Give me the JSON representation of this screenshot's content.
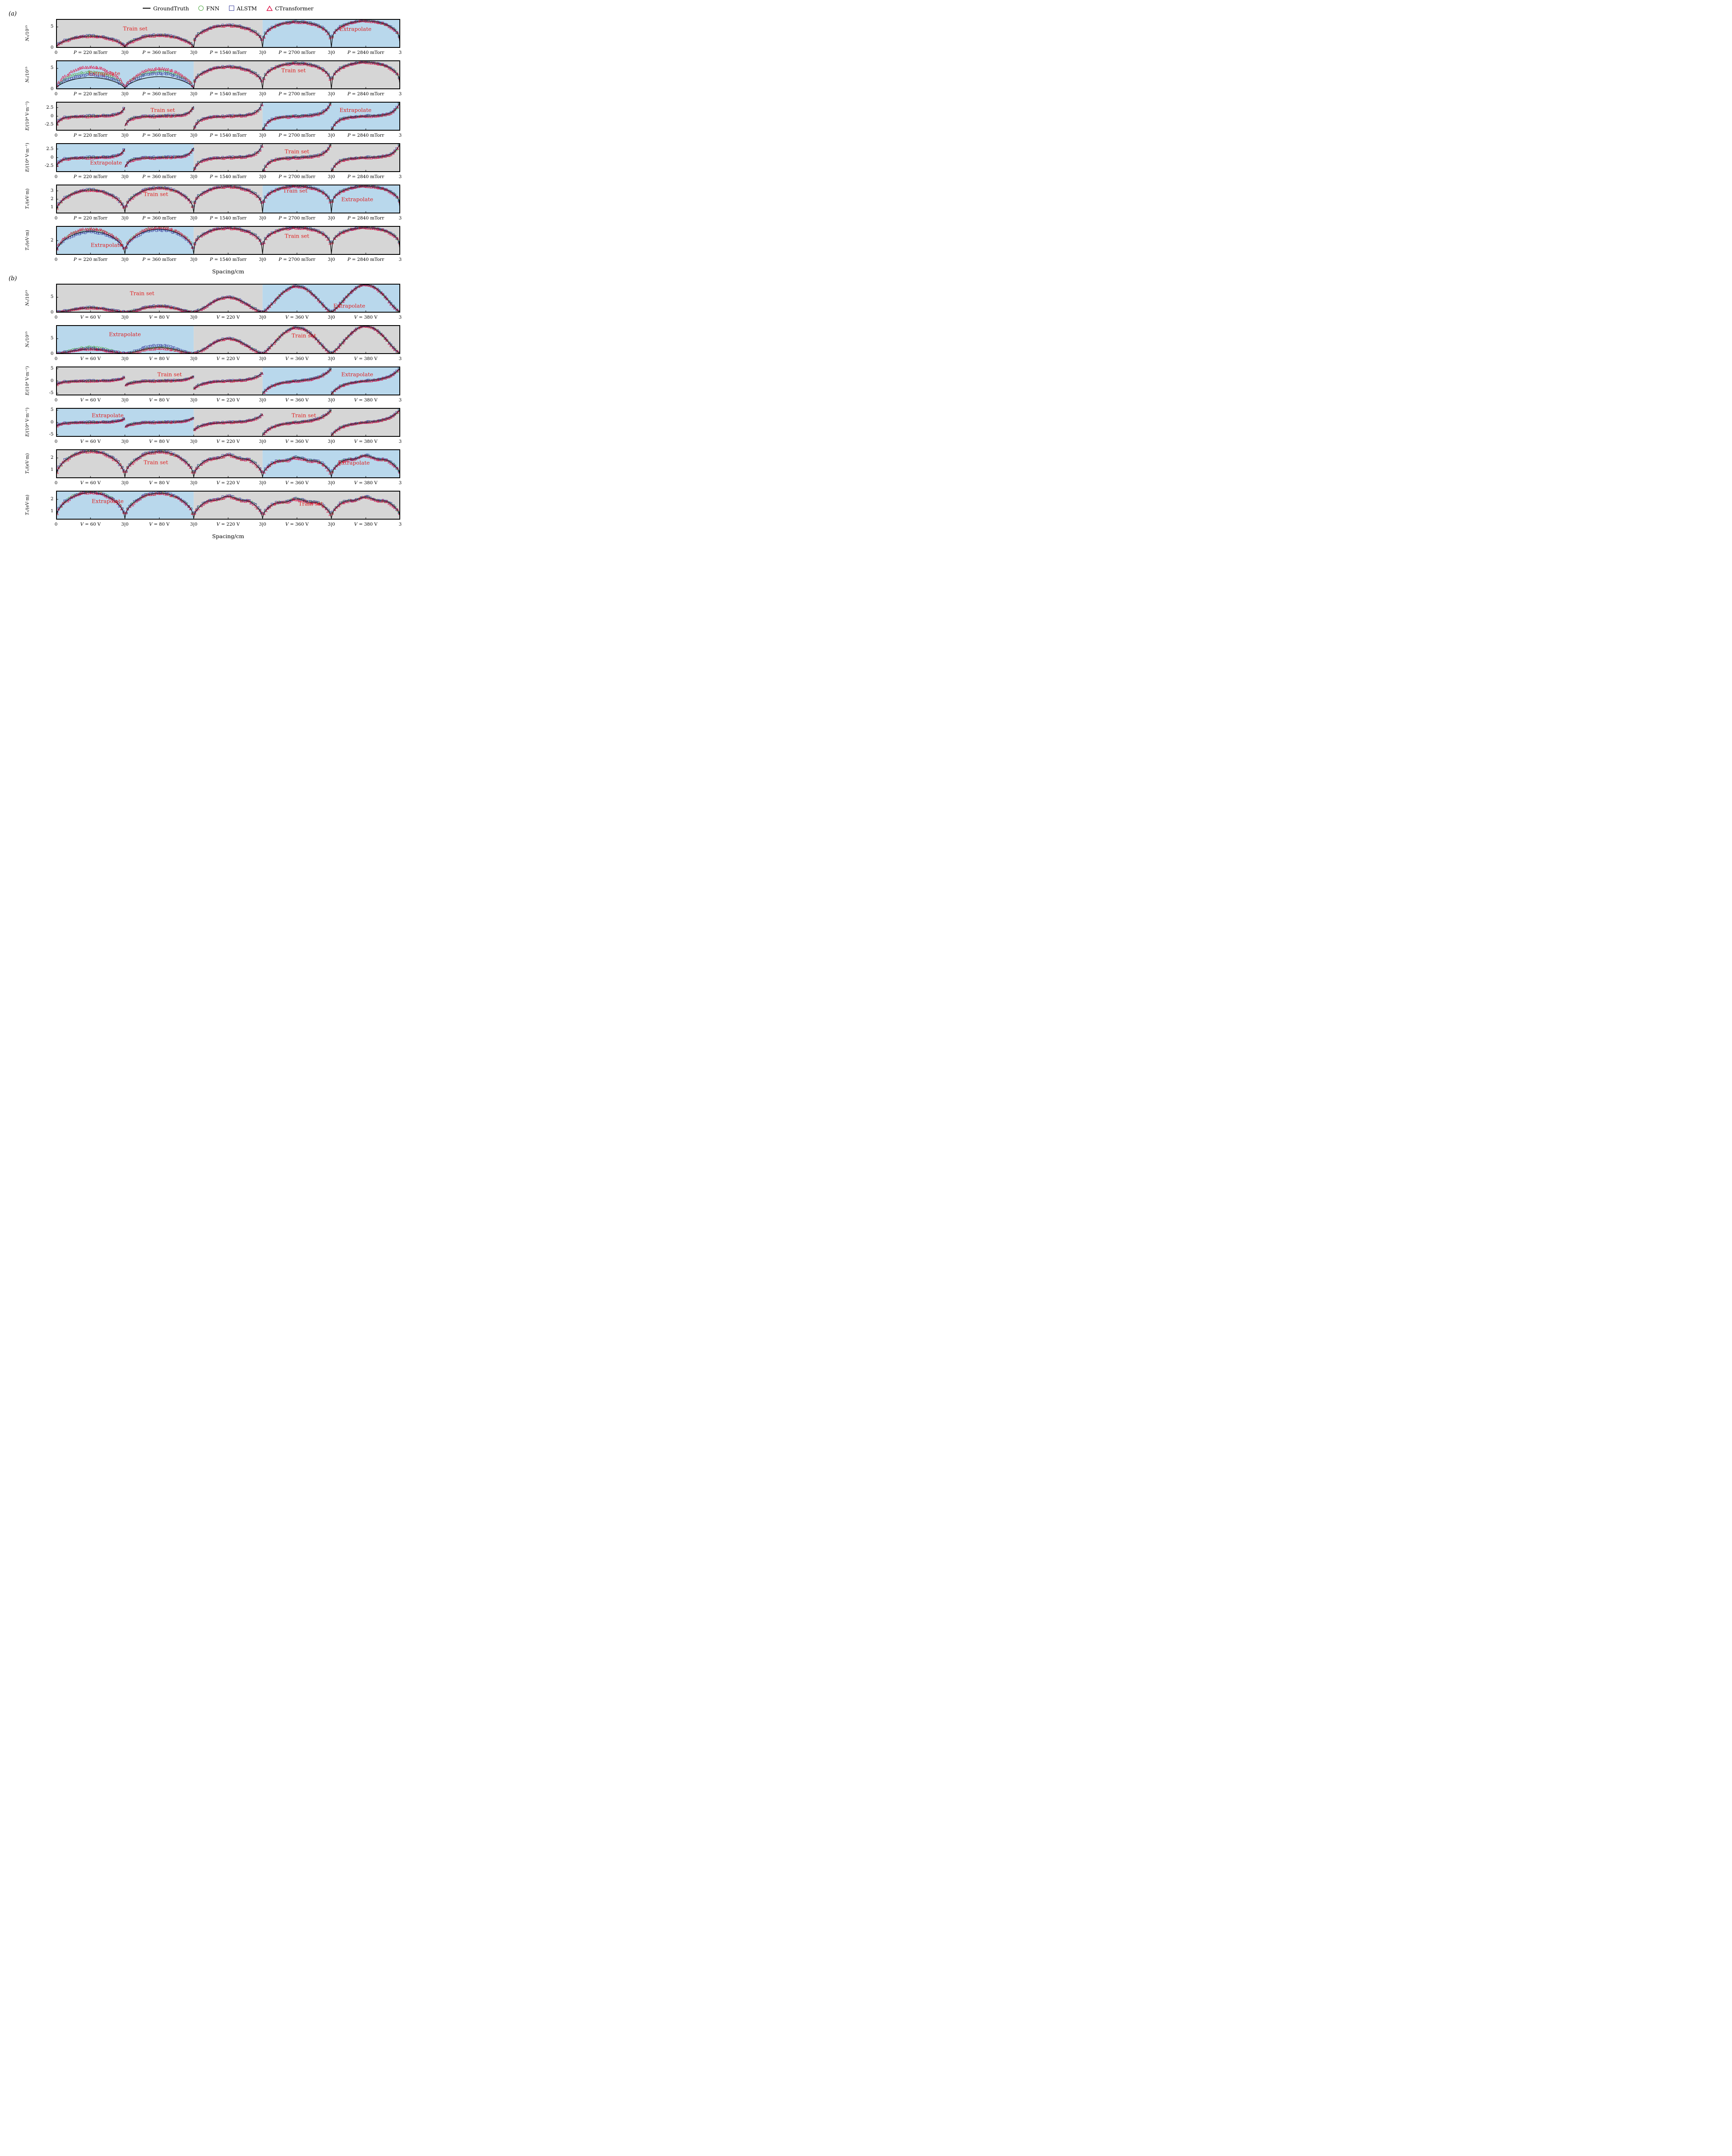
{
  "legend": {
    "items": [
      {
        "label": "GroundTruth",
        "marker": "line",
        "color": "#000000"
      },
      {
        "label": "FNN",
        "marker": "circle",
        "color": "#4aa83c"
      },
      {
        "label": "ALSTM",
        "marker": "square",
        "color": "#3a3f9e"
      },
      {
        "label": "CTransformer",
        "marker": "triangle",
        "color": "#e0174b"
      }
    ]
  },
  "colors": {
    "train_bg": "#d6d6d6",
    "extrapolate_bg": "#b9d8ec",
    "annotation": "#e01f1f",
    "frame": "#000000"
  },
  "chart_data": [
    {
      "panel": "(a)",
      "type": "line+scatter",
      "xlabel": "Spacing/cm",
      "x_boundary_ticks": [
        "0",
        "3|0",
        "3|0",
        "3|0",
        "3|0",
        "3"
      ],
      "segments": [
        "P = 220 mTorr",
        "P = 360 mTorr",
        "P = 1540 mTorr",
        "P = 2700 mTorr",
        "P = 2840 mTorr"
      ],
      "series_names": [
        "GroundTruth",
        "FNN",
        "ALSTM",
        "CTransformer"
      ],
      "rows": [
        {
          "id": "a1",
          "ylabel": "Nₑ/10¹⁵",
          "shape": "dome",
          "ylim": [
            0,
            6.9
          ],
          "yticks": [
            {
              "v": 5,
              "label": "5"
            },
            {
              "v": 0,
              "label": "0"
            }
          ],
          "flat": [
            0.6,
            0.6,
            0.35,
            0.3,
            0.3
          ],
          "base": 0.15,
          "peaks": [
            2.8,
            3.0,
            5.35,
            6.2,
            6.45
          ],
          "noise": 0.14,
          "regions": [
            {
              "from": 0,
              "to": 3,
              "kind": "train"
            },
            {
              "from": 3,
              "to": 5,
              "kind": "extrapolate"
            }
          ],
          "annotations": [
            {
              "text": "Train set",
              "x": 0.23,
              "y": 0.33
            },
            {
              "text": "Extrapolate",
              "x": 0.87,
              "y": 0.35
            }
          ]
        },
        {
          "id": "a2",
          "ylabel": "Nₑ/10¹⁵",
          "shape": "dome",
          "ylim": [
            0,
            6.9
          ],
          "yticks": [
            {
              "v": 5,
              "label": "5"
            },
            {
              "v": 0,
              "label": "0"
            }
          ],
          "flat": [
            0.6,
            0.6,
            0.35,
            0.3,
            0.3
          ],
          "base": 0.15,
          "peaks": [
            2.8,
            3.0,
            5.35,
            6.2,
            6.45
          ],
          "noise": 0.14,
          "model_peaks": {
            "0": {
              "FNN": 4.1,
              "ALSTM": 3.35,
              "CTransformer": 5.4
            },
            "1": {
              "FNN": 4.3,
              "ALSTM": 3.7,
              "CTransformer": 5.0
            }
          },
          "regions": [
            {
              "from": 0,
              "to": 2,
              "kind": "extrapolate"
            },
            {
              "from": 2,
              "to": 5,
              "kind": "train"
            }
          ],
          "annotations": [
            {
              "text": "Extrapolate",
              "x": 0.14,
              "y": 0.45
            },
            {
              "text": "Train set",
              "x": 0.69,
              "y": 0.35
            }
          ]
        },
        {
          "id": "a3",
          "ylabel": "E/(10⁴ V·m⁻¹)",
          "shape": "scurve",
          "ylim": [
            -4.2,
            4.2
          ],
          "yticks": [
            {
              "v": 2.5,
              "label": "2.5"
            },
            {
              "v": 0,
              "label": "0"
            },
            {
              "v": -2.5,
              "label": "-2.5"
            }
          ],
          "amps": [
            2.5,
            2.8,
            3.8,
            4.1,
            4.1
          ],
          "tailw": [
            0.06,
            0.06,
            0.07,
            0.08,
            0.08
          ],
          "noise": 0.17,
          "regions": [
            {
              "from": 0,
              "to": 3,
              "kind": "train"
            },
            {
              "from": 3,
              "to": 5,
              "kind": "extrapolate"
            }
          ],
          "annotations": [
            {
              "text": "Train set",
              "x": 0.31,
              "y": 0.28
            },
            {
              "text": "Extrapolate",
              "x": 0.87,
              "y": 0.28
            }
          ]
        },
        {
          "id": "a4",
          "ylabel": "E/(10⁴ V·m⁻¹)",
          "shape": "scurve",
          "ylim": [
            -4.2,
            4.2
          ],
          "yticks": [
            {
              "v": 2.5,
              "label": "2.5"
            },
            {
              "v": 0,
              "label": "0"
            },
            {
              "v": -2.5,
              "label": "-2.5"
            }
          ],
          "amps": [
            2.5,
            2.8,
            3.8,
            4.1,
            4.1
          ],
          "tailw": [
            0.06,
            0.06,
            0.07,
            0.08,
            0.08
          ],
          "noise": 0.17,
          "regions": [
            {
              "from": 0,
              "to": 2,
              "kind": "extrapolate"
            },
            {
              "from": 2,
              "to": 5,
              "kind": "train"
            }
          ],
          "annotations": [
            {
              "text": "Extrapolate",
              "x": 0.145,
              "y": 0.67
            },
            {
              "text": "Train set",
              "x": 0.7,
              "y": 0.28
            }
          ]
        },
        {
          "id": "a5",
          "ylabel": "Tₑ/(eV·m)",
          "shape": "dome",
          "ylim": [
            0.3,
            3.75
          ],
          "yticks": [
            {
              "v": 3,
              "label": "3"
            },
            {
              "v": 2,
              "label": "2"
            },
            {
              "v": 1,
              "label": "1"
            }
          ],
          "flat": [
            0.5,
            0.45,
            0.32,
            0.28,
            0.28
          ],
          "base": 0.45,
          "peaks": [
            3.1,
            3.35,
            3.5,
            3.55,
            3.55
          ],
          "noise": 0.07,
          "regions": [
            {
              "from": 0,
              "to": 3,
              "kind": "train"
            },
            {
              "from": 3,
              "to": 5,
              "kind": "extrapolate"
            }
          ],
          "annotations": [
            {
              "text": "Train set",
              "x": 0.29,
              "y": 0.33
            },
            {
              "text": "Train set",
              "x": 0.695,
              "y": 0.21
            },
            {
              "text": "Extrapolate",
              "x": 0.875,
              "y": 0.5
            }
          ]
        },
        {
          "id": "a6",
          "ylabel": "Tₑ/(eV·m)",
          "shape": "dome",
          "ylim": [
            0.3,
            3.75
          ],
          "yticks": [
            {
              "v": 2,
              "label": "2"
            }
          ],
          "flat": [
            0.5,
            0.45,
            0.32,
            0.28,
            0.28
          ],
          "base": 0.45,
          "peaks": [
            3.1,
            3.35,
            3.5,
            3.55,
            3.55
          ],
          "noise": 0.07,
          "model_peaks": {
            "0": {
              "FNN": 3.32,
              "ALSTM": 2.98,
              "CTransformer": 3.45
            },
            "1": {
              "FNN": 3.52,
              "ALSTM": 3.22,
              "CTransformer": 3.6
            }
          },
          "regions": [
            {
              "from": 0,
              "to": 2,
              "kind": "extrapolate"
            },
            {
              "from": 2,
              "to": 5,
              "kind": "train"
            }
          ],
          "annotations": [
            {
              "text": "Extrapolate",
              "x": 0.147,
              "y": 0.66
            },
            {
              "text": "Train set",
              "x": 0.7,
              "y": 0.34
            }
          ]
        }
      ]
    },
    {
      "panel": "(b)",
      "type": "line+scatter",
      "xlabel": "Spacing/cm",
      "x_boundary_ticks": [
        "0",
        "3|0",
        "3|0",
        "3|0",
        "3|0",
        "3"
      ],
      "segments": [
        "V = 60 V",
        "V = 80 V",
        "V = 220 V",
        "V = 360 V",
        "V = 380 V"
      ],
      "series_names": [
        "GroundTruth",
        "FNN",
        "ALSTM",
        "CTransformer"
      ],
      "rows": [
        {
          "id": "b1",
          "ylabel": "Nₑ/10¹⁵",
          "shape": "dome",
          "ylim": [
            0,
            9.4
          ],
          "yticks": [
            {
              "v": 5,
              "label": "5"
            },
            {
              "v": 0,
              "label": "0"
            }
          ],
          "flat": [
            1.5,
            1.5,
            1.5,
            1.3,
            1.3
          ],
          "base": 0.15,
          "peaks": [
            1.6,
            2.1,
            5.0,
            8.6,
            9.1
          ],
          "noise": 0.16,
          "regions": [
            {
              "from": 0,
              "to": 3,
              "kind": "train"
            },
            {
              "from": 3,
              "to": 5,
              "kind": "extrapolate"
            }
          ],
          "annotations": [
            {
              "text": "Train set",
              "x": 0.25,
              "y": 0.33
            },
            {
              "text": "Extrapolate",
              "x": 0.852,
              "y": 0.76
            }
          ]
        },
        {
          "id": "b2",
          "ylabel": "Nₑ/10¹⁵",
          "shape": "dome",
          "ylim": [
            0,
            9.4
          ],
          "yticks": [
            {
              "v": 5,
              "label": "5"
            },
            {
              "v": 0,
              "label": "0"
            }
          ],
          "flat": [
            1.5,
            1.5,
            1.5,
            1.3,
            1.3
          ],
          "base": 0.15,
          "peaks": [
            1.6,
            2.1,
            5.0,
            8.6,
            9.1
          ],
          "noise": 0.16,
          "model_peaks": {
            "0": {
              "FNN": 2.25,
              "ALSTM": 1.7,
              "CTransformer": 1.65
            },
            "1": {
              "ALSTM": 2.7,
              "FNN": 2.1,
              "CTransformer": 1.85
            }
          },
          "regions": [
            {
              "from": 0,
              "to": 2,
              "kind": "extrapolate"
            },
            {
              "from": 2,
              "to": 5,
              "kind": "train"
            }
          ],
          "annotations": [
            {
              "text": "Extrapolate",
              "x": 0.2,
              "y": 0.32
            },
            {
              "text": "Train set",
              "x": 0.72,
              "y": 0.36
            }
          ]
        },
        {
          "id": "b3",
          "ylabel": "E/(10⁴ V·m⁻¹)",
          "shape": "scurve",
          "ylim": [
            -5.9,
            5.9
          ],
          "yticks": [
            {
              "v": 5,
              "label": "5"
            },
            {
              "v": 0,
              "label": "0"
            },
            {
              "v": -5,
              "label": "-5"
            }
          ],
          "amps": [
            1.5,
            1.9,
            3.3,
            5.0,
            5.2
          ],
          "tailw": [
            0.08,
            0.09,
            0.11,
            0.14,
            0.14
          ],
          "noise": 0.18,
          "regions": [
            {
              "from": 0,
              "to": 3,
              "kind": "train"
            },
            {
              "from": 3,
              "to": 5,
              "kind": "extrapolate"
            }
          ],
          "annotations": [
            {
              "text": "Train set",
              "x": 0.33,
              "y": 0.27
            },
            {
              "text": "Extrapolate",
              "x": 0.875,
              "y": 0.27
            }
          ]
        },
        {
          "id": "b4",
          "ylabel": "E/(10⁴ V·m⁻¹)",
          "shape": "scurve",
          "ylim": [
            -5.9,
            5.9
          ],
          "yticks": [
            {
              "v": 5,
              "label": "5"
            },
            {
              "v": 0,
              "label": "0"
            },
            {
              "v": -5,
              "label": "-5"
            }
          ],
          "amps": [
            1.5,
            1.9,
            3.3,
            5.0,
            5.2
          ],
          "tailw": [
            0.08,
            0.09,
            0.11,
            0.14,
            0.14
          ],
          "noise": 0.18,
          "regions": [
            {
              "from": 0,
              "to": 2,
              "kind": "extrapolate"
            },
            {
              "from": 2,
              "to": 5,
              "kind": "train"
            }
          ],
          "annotations": [
            {
              "text": "Extrapolate",
              "x": 0.15,
              "y": 0.25
            },
            {
              "text": "Train set",
              "x": 0.72,
              "y": 0.25
            }
          ]
        },
        {
          "id": "b5",
          "ylabel": "Tₑ/(eV·m)",
          "shape": "dome",
          "ylim": [
            0.35,
            2.7
          ],
          "yticks": [
            {
              "v": 2,
              "label": "2"
            },
            {
              "v": 1,
              "label": "1"
            }
          ],
          "flat": [
            0.5,
            0.5,
            0.45,
            0.42,
            0.42
          ],
          "base": 0.45,
          "peaks": [
            2.55,
            2.5,
            2.15,
            1.95,
            2.1
          ],
          "ripple": [
            0,
            0,
            1,
            1,
            1
          ],
          "noise": 0.06,
          "regions": [
            {
              "from": 0,
              "to": 3,
              "kind": "train"
            },
            {
              "from": 3,
              "to": 5,
              "kind": "extrapolate"
            }
          ],
          "annotations": [
            {
              "text": "Train set",
              "x": 0.29,
              "y": 0.45
            },
            {
              "text": "Extrapolate",
              "x": 0.865,
              "y": 0.47
            }
          ]
        },
        {
          "id": "b6",
          "ylabel": "Tₑ/(eV·m)",
          "shape": "dome",
          "ylim": [
            0.35,
            2.7
          ],
          "yticks": [
            {
              "v": 2,
              "label": "2"
            },
            {
              "v": 1,
              "label": "1"
            }
          ],
          "flat": [
            0.5,
            0.5,
            0.45,
            0.42,
            0.42
          ],
          "base": 0.45,
          "peaks": [
            2.55,
            2.5,
            2.15,
            1.95,
            2.1
          ],
          "ripple": [
            0,
            0,
            1,
            1,
            1
          ],
          "noise": 0.06,
          "model_peaks": {
            "0": {
              "FNN": 2.62,
              "CTransformer": 2.58
            }
          },
          "regions": [
            {
              "from": 0,
              "to": 2,
              "kind": "extrapolate"
            },
            {
              "from": 2,
              "to": 5,
              "kind": "train"
            }
          ],
          "annotations": [
            {
              "text": "Extrapolate",
              "x": 0.15,
              "y": 0.36
            },
            {
              "text": "Train set",
              "x": 0.74,
              "y": 0.45
            }
          ]
        }
      ]
    }
  ]
}
